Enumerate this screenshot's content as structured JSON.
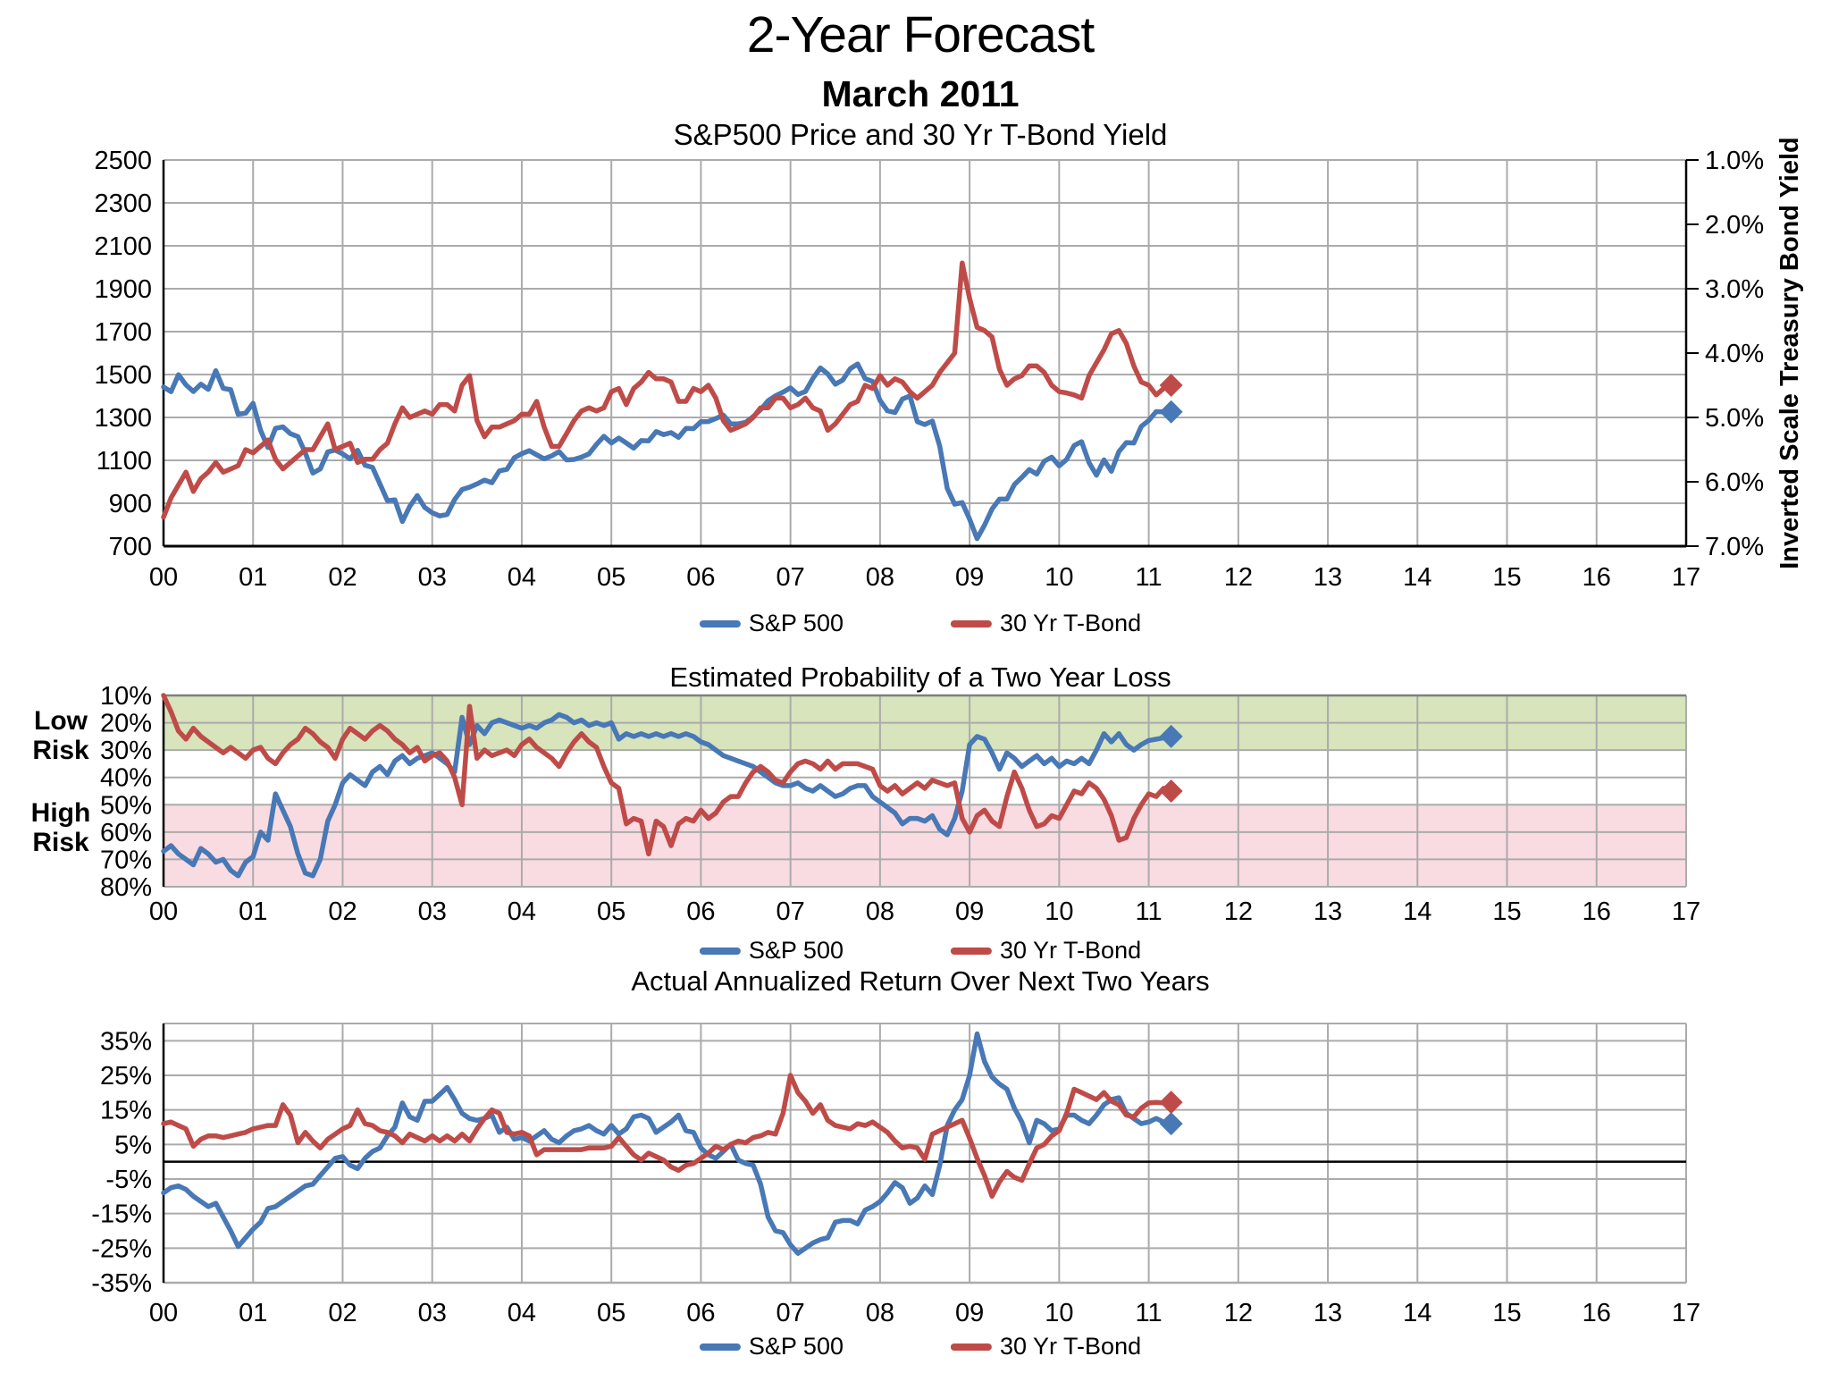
{
  "header": {
    "title": "2-Year Forecast",
    "subtitle": "March 2011"
  },
  "legend": {
    "sp500": "S&P 500",
    "tbond": "30 Yr T-Bond"
  },
  "colors": {
    "sp500": "#4878B5",
    "tbond": "#BF4B48",
    "green_band": "#D7E4BC",
    "pink_band": "#F9DBE2",
    "grid": "#ABABAB",
    "band_top_border": "#7F7F7F",
    "axis": "#000000"
  },
  "x_axis": {
    "year_labels": [
      "00",
      "01",
      "02",
      "03",
      "04",
      "05",
      "06",
      "07",
      "08",
      "09",
      "10",
      "11",
      "12",
      "13",
      "14",
      "15",
      "16",
      "17"
    ],
    "x_min": 0,
    "x_max": 17
  },
  "chart_data": [
    {
      "id": "price_yield",
      "type": "line",
      "title": "S&P500 Price and 30 Yr T-Bond Yield",
      "y_left": {
        "min": 700,
        "max": 2500,
        "invert": false,
        "tick_values": [
          2500,
          2300,
          2100,
          1900,
          1700,
          1500,
          1300,
          1100,
          900,
          700
        ],
        "tick_labels": [
          "2500",
          "2300",
          "2100",
          "1900",
          "1700",
          "1500",
          "1300",
          "1100",
          "900",
          "700"
        ]
      },
      "y_right": {
        "label": "Inverted Scale Treasury Bond Yield",
        "min": 1,
        "max": 7,
        "invert": true,
        "tick_values": [
          1,
          2,
          3,
          4,
          5,
          6,
          7
        ],
        "tick_labels": [
          "1.0%",
          "2.0%",
          "3.0%",
          "4.0%",
          "5.0%",
          "6.0%",
          "7.0%"
        ]
      },
      "series": [
        {
          "name": "S&P 500",
          "color_key": "sp500",
          "axis": "left",
          "x_start": 0,
          "x_step": 0.0833333,
          "values": [
            1442,
            1420,
            1499,
            1452,
            1421,
            1455,
            1431,
            1518,
            1436,
            1429,
            1315,
            1320,
            1366,
            1240,
            1160,
            1249,
            1256,
            1224,
            1211,
            1134,
            1041,
            1060,
            1139,
            1148,
            1130,
            1107,
            1147,
            1077,
            1067,
            990,
            912,
            916,
            815,
            886,
            936,
            880,
            856,
            841,
            848,
            917,
            964,
            975,
            990,
            1008,
            996,
            1051,
            1058,
            1112,
            1131,
            1145,
            1126,
            1107,
            1121,
            1141,
            1102,
            1104,
            1115,
            1130,
            1174,
            1212,
            1181,
            1204,
            1181,
            1157,
            1192,
            1191,
            1234,
            1220,
            1229,
            1207,
            1249,
            1248,
            1280,
            1281,
            1295,
            1311,
            1270,
            1270,
            1277,
            1304,
            1336,
            1378,
            1401,
            1418,
            1438,
            1407,
            1421,
            1482,
            1531,
            1503,
            1455,
            1474,
            1527,
            1549,
            1481,
            1468,
            1379,
            1331,
            1323,
            1386,
            1400,
            1280,
            1267,
            1283,
            1166,
            969,
            896,
            903,
            826,
            735,
            798,
            873,
            919,
            919,
            987,
            1021,
            1057,
            1036,
            1096,
            1115,
            1074,
            1104,
            1169,
            1187,
            1089,
            1031,
            1102,
            1049,
            1141,
            1183,
            1181,
            1258,
            1286,
            1327,
            1326
          ],
          "forecast_marker": {
            "x": 11.25,
            "value": 1326
          }
        },
        {
          "name": "30 Yr T-Bond",
          "color_key": "tbond",
          "axis": "right",
          "x_start": 0,
          "x_step": 0.0833333,
          "values": [
            6.55,
            6.25,
            6.05,
            5.85,
            6.15,
            5.95,
            5.85,
            5.7,
            5.85,
            5.8,
            5.75,
            5.5,
            5.55,
            5.45,
            5.35,
            5.65,
            5.8,
            5.7,
            5.6,
            5.5,
            5.5,
            5.3,
            5.1,
            5.5,
            5.45,
            5.4,
            5.7,
            5.65,
            5.65,
            5.5,
            5.4,
            5.1,
            4.85,
            5.0,
            4.95,
            4.9,
            4.95,
            4.8,
            4.8,
            4.9,
            4.5,
            4.35,
            5.05,
            5.3,
            5.15,
            5.15,
            5.1,
            5.05,
            4.95,
            4.95,
            4.75,
            5.15,
            5.45,
            5.45,
            5.25,
            5.05,
            4.9,
            4.85,
            4.9,
            4.85,
            4.6,
            4.55,
            4.8,
            4.55,
            4.45,
            4.3,
            4.4,
            4.4,
            4.45,
            4.75,
            4.75,
            4.55,
            4.6,
            4.5,
            4.7,
            5.05,
            5.2,
            5.15,
            5.1,
            5.0,
            4.85,
            4.85,
            4.7,
            4.7,
            4.85,
            4.8,
            4.7,
            4.85,
            4.9,
            5.2,
            5.1,
            4.95,
            4.8,
            4.75,
            4.5,
            4.55,
            4.35,
            4.5,
            4.4,
            4.45,
            4.6,
            4.7,
            4.6,
            4.5,
            4.3,
            4.15,
            4.0,
            2.6,
            3.15,
            3.6,
            3.65,
            3.75,
            4.25,
            4.5,
            4.4,
            4.35,
            4.2,
            4.2,
            4.3,
            4.5,
            4.6,
            4.62,
            4.65,
            4.7,
            4.35,
            4.15,
            3.95,
            3.7,
            3.65,
            3.85,
            4.2,
            4.45,
            4.5,
            4.65,
            4.55
          ],
          "forecast_marker": {
            "x": 11.25,
            "value": 4.5
          }
        }
      ]
    },
    {
      "id": "loss_probability",
      "type": "line",
      "title": "Estimated Probability of a Two Year Loss",
      "y_left": {
        "min": 10,
        "max": 80,
        "invert": true,
        "tick_values": [
          10,
          20,
          30,
          40,
          50,
          60,
          70,
          80
        ],
        "tick_labels": [
          "10%",
          "20%",
          "30%",
          "40%",
          "50%",
          "60%",
          "70%",
          "80%"
        ]
      },
      "zones": [
        {
          "label": "Low Risk",
          "from": 10,
          "to": 30,
          "color_key": "green_band"
        },
        {
          "label": "High Risk",
          "from": 50,
          "to": 80,
          "color_key": "pink_band"
        }
      ],
      "series": [
        {
          "name": "S&P 500",
          "color_key": "sp500",
          "axis": "left",
          "x_start": 0,
          "x_step": 0.0833333,
          "values": [
            67,
            65,
            68,
            70,
            72,
            66,
            68,
            71,
            70,
            74,
            76,
            71,
            69,
            60,
            63,
            46,
            52,
            58,
            68,
            75,
            76,
            70,
            56,
            50,
            42,
            39,
            41,
            43,
            38,
            36,
            39,
            34,
            32,
            35,
            33,
            32,
            31,
            33,
            35,
            38,
            18,
            28,
            21,
            24,
            20,
            19,
            20,
            21,
            22,
            21,
            22,
            20,
            19,
            17,
            18,
            20,
            19,
            21,
            20,
            21,
            20,
            26,
            24,
            25,
            24,
            25,
            24,
            25,
            24,
            25,
            24,
            25,
            27,
            28,
            30,
            32,
            33,
            34,
            35,
            36,
            38,
            40,
            42,
            43,
            43,
            42,
            44,
            45,
            43,
            45,
            47,
            46,
            44,
            43,
            43,
            47,
            49,
            51,
            53,
            57,
            55,
            55,
            56,
            54,
            59,
            61,
            55,
            45,
            28,
            25,
            26,
            31,
            37,
            31,
            33,
            36,
            34,
            32,
            35,
            33,
            36,
            34,
            35,
            33,
            35,
            30,
            24,
            27,
            24,
            28,
            30,
            28,
            26.5,
            26,
            25.5
          ],
          "forecast_marker": {
            "x": 11.25,
            "value": 25
          }
        },
        {
          "name": "30 Yr T-Bond",
          "color_key": "tbond",
          "axis": "left",
          "x_start": 0,
          "x_step": 0.0833333,
          "values": [
            10,
            16,
            23,
            26,
            22,
            25,
            27,
            29,
            31,
            29,
            31,
            33,
            30,
            29,
            33,
            35,
            31,
            28,
            26,
            22,
            24,
            27,
            29,
            33,
            26,
            22,
            24,
            26,
            23,
            21,
            23,
            26,
            28,
            31,
            29,
            34,
            32,
            31,
            34,
            40,
            50,
            14,
            33,
            30,
            32,
            31,
            30,
            32,
            28,
            26,
            29,
            31,
            33,
            36,
            31,
            27,
            24,
            27,
            29,
            36,
            42,
            44,
            57,
            55,
            56,
            68,
            56,
            58,
            65,
            57,
            55,
            56,
            52,
            55,
            53,
            49,
            47,
            47,
            42,
            38,
            36,
            38,
            41,
            42,
            38,
            35,
            34,
            35,
            37,
            34,
            37,
            35,
            35,
            35,
            36,
            37,
            43,
            45,
            43,
            46,
            44,
            42,
            44,
            41,
            42,
            43,
            42,
            55,
            60,
            54,
            52,
            56,
            58,
            47,
            38,
            44,
            52,
            58,
            57,
            54,
            55,
            50,
            45,
            46,
            42,
            44,
            48,
            54,
            63,
            62,
            55,
            50,
            46,
            47,
            44
          ],
          "forecast_marker": {
            "x": 11.25,
            "value": 45
          }
        }
      ]
    },
    {
      "id": "actual_return",
      "type": "line",
      "title": "Actual Annualized Return Over Next Two Years",
      "y_left": {
        "min": -35,
        "max": 40,
        "invert": false,
        "tick_values": [
          35,
          25,
          15,
          5,
          -5,
          -15,
          -25,
          -35
        ],
        "tick_labels": [
          "35%",
          "25%",
          "15%",
          "5%",
          "-5%",
          "-15%",
          "-25%",
          "-35%"
        ]
      },
      "zero_line": 0,
      "series": [
        {
          "name": "S&P 500",
          "color_key": "sp500",
          "axis": "left",
          "x_start": 0,
          "x_step": 0.0833333,
          "values": [
            -9,
            -7.5,
            -7,
            -8,
            -10,
            -11.5,
            -13,
            -12,
            -16,
            -20,
            -24.5,
            -22,
            -19.5,
            -17.5,
            -13.5,
            -13,
            -11.5,
            -10,
            -8.5,
            -7,
            -6.5,
            -4,
            -1.5,
            1,
            1.5,
            -1,
            -2,
            1,
            3,
            4,
            7.5,
            10,
            17,
            13,
            12,
            17.5,
            17.5,
            19.5,
            21.5,
            18,
            14,
            12.5,
            12,
            12.5,
            13.5,
            8.5,
            10,
            6.5,
            7,
            6,
            7.5,
            9,
            6.5,
            5.5,
            7.5,
            9,
            9.5,
            10.5,
            9,
            8,
            10.5,
            8,
            9.5,
            13,
            13.5,
            12.5,
            8.5,
            10,
            11.5,
            13.5,
            9,
            8.5,
            4,
            2,
            1,
            3,
            5,
            0.5,
            -0.5,
            -1,
            -6.5,
            -16,
            -20,
            -20.5,
            -24,
            -26.5,
            -25,
            -23.5,
            -22.5,
            -22,
            -17.5,
            -17,
            -17,
            -18,
            -14,
            -13,
            -11.5,
            -9,
            -6,
            -7.5,
            -12,
            -10.5,
            -7,
            -9.5,
            -1,
            10.5,
            15,
            18,
            25,
            37,
            29,
            24.5,
            22.5,
            21,
            15.5,
            11.5,
            5.5,
            12,
            11,
            9,
            9.5,
            13.5,
            13.5,
            12,
            11,
            13.5,
            16.5,
            18,
            18.5,
            14,
            12.5,
            11,
            11.5,
            12.5,
            11.5
          ],
          "forecast_marker": {
            "x": 11.25,
            "value": 11
          }
        },
        {
          "name": "30 Yr T-Bond",
          "color_key": "tbond",
          "axis": "left",
          "x_start": 0,
          "x_step": 0.0833333,
          "values": [
            11,
            11.5,
            10.5,
            9.5,
            4.5,
            6.5,
            7.5,
            7.5,
            7,
            7.5,
            8,
            8.5,
            9.5,
            10,
            10.5,
            10.5,
            16.5,
            13.5,
            5.5,
            8.5,
            6,
            4,
            6.5,
            8,
            9.5,
            10.5,
            15,
            11,
            10.5,
            9,
            8.5,
            7.5,
            5.5,
            8,
            7,
            6,
            7.5,
            6,
            7.5,
            6,
            8,
            6,
            9.5,
            12.5,
            15,
            14,
            8.5,
            8,
            8.5,
            7.5,
            2,
            3.5,
            3.5,
            3.5,
            3.5,
            3.5,
            3.5,
            4,
            4,
            4,
            4.5,
            7,
            4.5,
            2,
            0.5,
            2.5,
            1.5,
            0.5,
            -1.5,
            -2.5,
            -1,
            -0.5,
            1,
            2.5,
            4.5,
            3.5,
            5,
            6,
            5.5,
            7,
            7.5,
            8.5,
            8,
            14,
            25,
            20,
            17.5,
            14,
            16.5,
            12,
            10.5,
            10,
            9.5,
            11,
            10.5,
            11.5,
            10,
            8.5,
            6,
            4,
            4.5,
            4,
            0.7,
            8,
            9,
            10,
            11,
            12,
            6.8,
            1,
            -4,
            -10,
            -5.8,
            -2.8,
            -4.5,
            -5.4,
            -0.6,
            4,
            5,
            7.5,
            9,
            14,
            21,
            20,
            19,
            18,
            20,
            17.5,
            16.5,
            13.5,
            13,
            15.5,
            17,
            17.2,
            17
          ],
          "forecast_marker": {
            "x": 11.25,
            "value": 17.2
          }
        }
      ]
    }
  ]
}
